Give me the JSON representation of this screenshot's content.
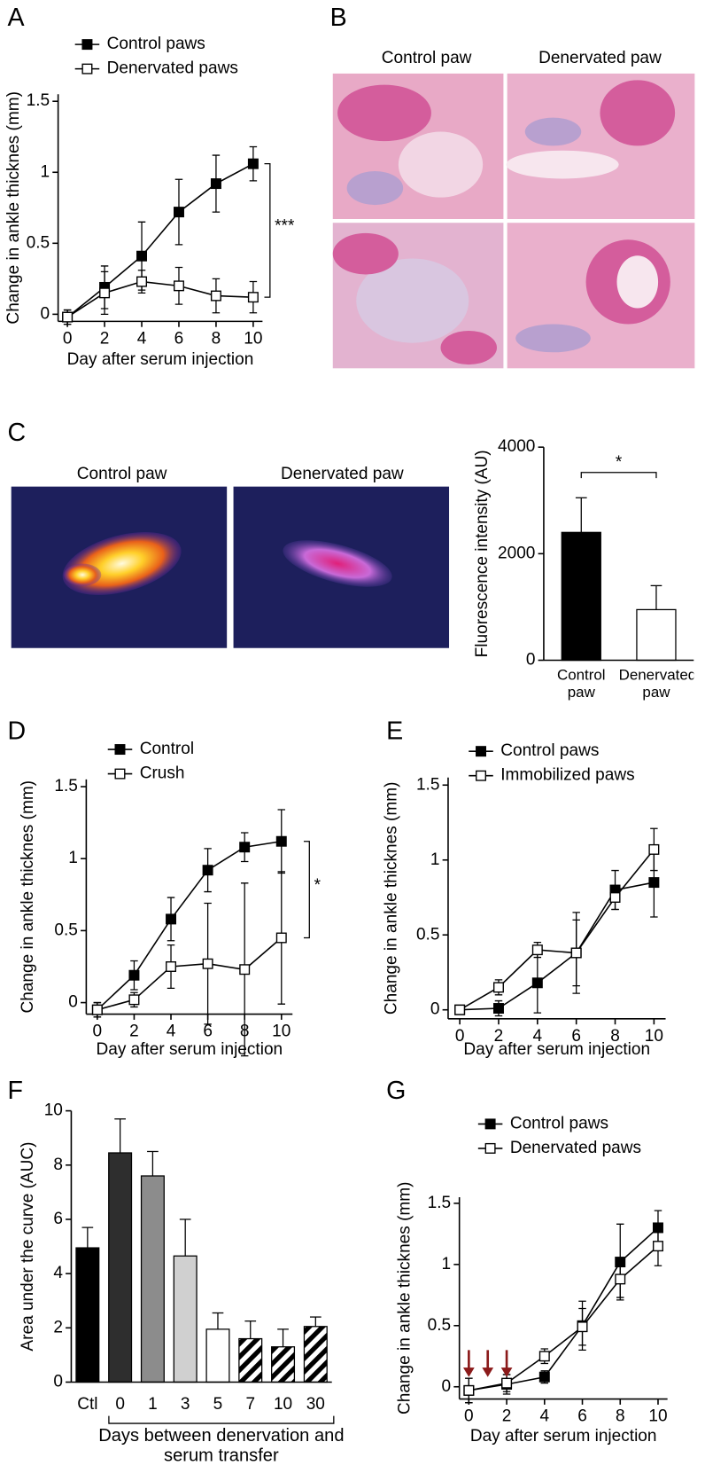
{
  "chart_data": [
    {
      "type": "line",
      "panel": "A",
      "xlabel": "Day after serum injection",
      "ylabel": "Change in ankle thicknes (mm)",
      "x": [
        0,
        2,
        4,
        6,
        8,
        10
      ],
      "xlim": [
        -0.5,
        10.5
      ],
      "xticks": [
        0,
        2,
        4,
        6,
        8,
        10
      ],
      "ylim": [
        -0.05,
        1.55
      ],
      "yticks": [
        0,
        0.5,
        1,
        1.5
      ],
      "significance": "***",
      "series": [
        {
          "name": "Control paws",
          "color": "#000000",
          "marker_fill": "#000000",
          "values": [
            -0.02,
            0.19,
            0.41,
            0.72,
            0.92,
            1.06
          ],
          "errors": [
            0.05,
            0.15,
            0.24,
            0.23,
            0.2,
            0.12
          ]
        },
        {
          "name": "Denervated paws",
          "color": "#000000",
          "marker_fill": "#ffffff",
          "values": [
            -0.02,
            0.15,
            0.23,
            0.2,
            0.13,
            0.12
          ],
          "errors": [
            0.05,
            0.15,
            0.08,
            0.13,
            0.12,
            0.11
          ]
        }
      ]
    },
    {
      "type": "bar",
      "ylabel": "Fluorescence intensity (AU)",
      "categories": [
        "Control paw",
        "Denervated paw"
      ],
      "values": [
        2400,
        950
      ],
      "errors": [
        650,
        450
      ],
      "colors": [
        "#000000",
        "#ffffff"
      ],
      "hatched": [
        false,
        false
      ],
      "ylim": [
        0,
        4000
      ],
      "yticks": [
        0,
        2000,
        4000
      ],
      "significance": "*"
    },
    {
      "type": "line",
      "panel": "D",
      "xlabel": "Day after serum injection",
      "ylabel": "Change in ankle thicknes (mm)",
      "x": [
        0,
        2,
        4,
        6,
        8,
        10
      ],
      "xlim": [
        -0.6,
        10.6
      ],
      "xticks": [
        0,
        2,
        4,
        6,
        8,
        10
      ],
      "ylim": [
        -0.08,
        1.55
      ],
      "yticks": [
        0,
        0.5,
        1,
        1.5
      ],
      "significance": "*",
      "series": [
        {
          "name": "Control",
          "color": "#000000",
          "marker_fill": "#000000",
          "values": [
            -0.05,
            0.19,
            0.58,
            0.92,
            1.08,
            1.12
          ],
          "errors": [
            0.05,
            0.1,
            0.15,
            0.15,
            0.1,
            0.22
          ]
        },
        {
          "name": "Crush",
          "color": "#000000",
          "marker_fill": "#ffffff",
          "values": [
            -0.05,
            0.02,
            0.25,
            0.27,
            0.23,
            0.45
          ],
          "errors": [
            0.05,
            0.05,
            0.15,
            0.42,
            0.6,
            0.46
          ]
        }
      ]
    },
    {
      "type": "line",
      "panel": "E",
      "xlabel": "Day after serum injection",
      "ylabel": "Change in ankle thicknes (mm)",
      "x": [
        0,
        2,
        4,
        6,
        8,
        10
      ],
      "xlim": [
        -0.6,
        10.6
      ],
      "xticks": [
        0,
        2,
        4,
        6,
        8,
        10
      ],
      "ylim": [
        -0.06,
        1.55
      ],
      "yticks": [
        0,
        0.5,
        1,
        1.5
      ],
      "series": [
        {
          "name": "Control paws",
          "color": "#000000",
          "marker_fill": "#000000",
          "values": [
            0,
            0.01,
            0.18,
            0.38,
            0.8,
            0.85
          ],
          "errors": [
            0.03,
            0.05,
            0.2,
            0.22,
            0.13,
            0.23
          ]
        },
        {
          "name": "Immobilized paws",
          "color": "#000000",
          "marker_fill": "#ffffff",
          "values": [
            0,
            0.15,
            0.4,
            0.38,
            0.75,
            1.07
          ],
          "errors": [
            0.03,
            0.05,
            0.05,
            0.27,
            0.08,
            0.14
          ]
        }
      ]
    },
    {
      "type": "bar",
      "panel": "F",
      "ylabel": "Area under the curve (AUC)",
      "xlabel": "Days between denervation and serum transfer",
      "categories": [
        "Ctl",
        "0",
        "1",
        "3",
        "5",
        "7",
        "10",
        "30"
      ],
      "values": [
        4.95,
        8.45,
        7.6,
        4.65,
        1.95,
        1.6,
        1.3,
        2.05
      ],
      "errors": [
        0.75,
        1.25,
        0.9,
        1.35,
        0.6,
        0.65,
        0.65,
        0.35
      ],
      "colors": [
        "#000000",
        "#2e2e2e",
        "#8c8c8c",
        "#d0d0d0",
        "#ffffff",
        "#ffffff",
        "#ffffff",
        "#ffffff"
      ],
      "hatched": [
        false,
        false,
        false,
        false,
        false,
        true,
        true,
        true
      ],
      "ylim": [
        0,
        10
      ],
      "yticks": [
        0,
        2,
        4,
        6,
        8,
        10
      ]
    },
    {
      "type": "line",
      "panel": "G",
      "xlabel": "Day after serum injection",
      "ylabel": "Change in ankle thicknes (mm)",
      "x": [
        0,
        2,
        4,
        6,
        8,
        10
      ],
      "xlim": [
        -0.5,
        10.5
      ],
      "xticks": [
        0,
        2,
        4,
        6,
        8,
        10
      ],
      "ylim": [
        -0.1,
        1.55
      ],
      "yticks": [
        0,
        0.5,
        1,
        1.5
      ],
      "arrows": [
        0,
        1,
        2
      ],
      "arrow_color": "#8b1a1a",
      "series": [
        {
          "name": "Control paws",
          "color": "#000000",
          "marker_fill": "#000000",
          "values": [
            -0.03,
            0.02,
            0.08,
            0.5,
            1.02,
            1.3
          ],
          "errors": [
            0.1,
            0.08,
            0.05,
            0.2,
            0.31,
            0.14
          ]
        },
        {
          "name": "Denervated paws",
          "color": "#000000",
          "marker_fill": "#ffffff",
          "values": [
            -0.03,
            0.03,
            0.25,
            0.49,
            0.88,
            1.15
          ],
          "errors": [
            0.1,
            0.07,
            0.06,
            0.15,
            0.15,
            0.16
          ]
        }
      ]
    }
  ],
  "image_panels": [
    {
      "panel": "B",
      "headers": [
        "Control paw",
        "Denervated paw"
      ]
    },
    {
      "panel": "C",
      "headers": [
        "Control paw",
        "Denervated paw"
      ]
    }
  ]
}
